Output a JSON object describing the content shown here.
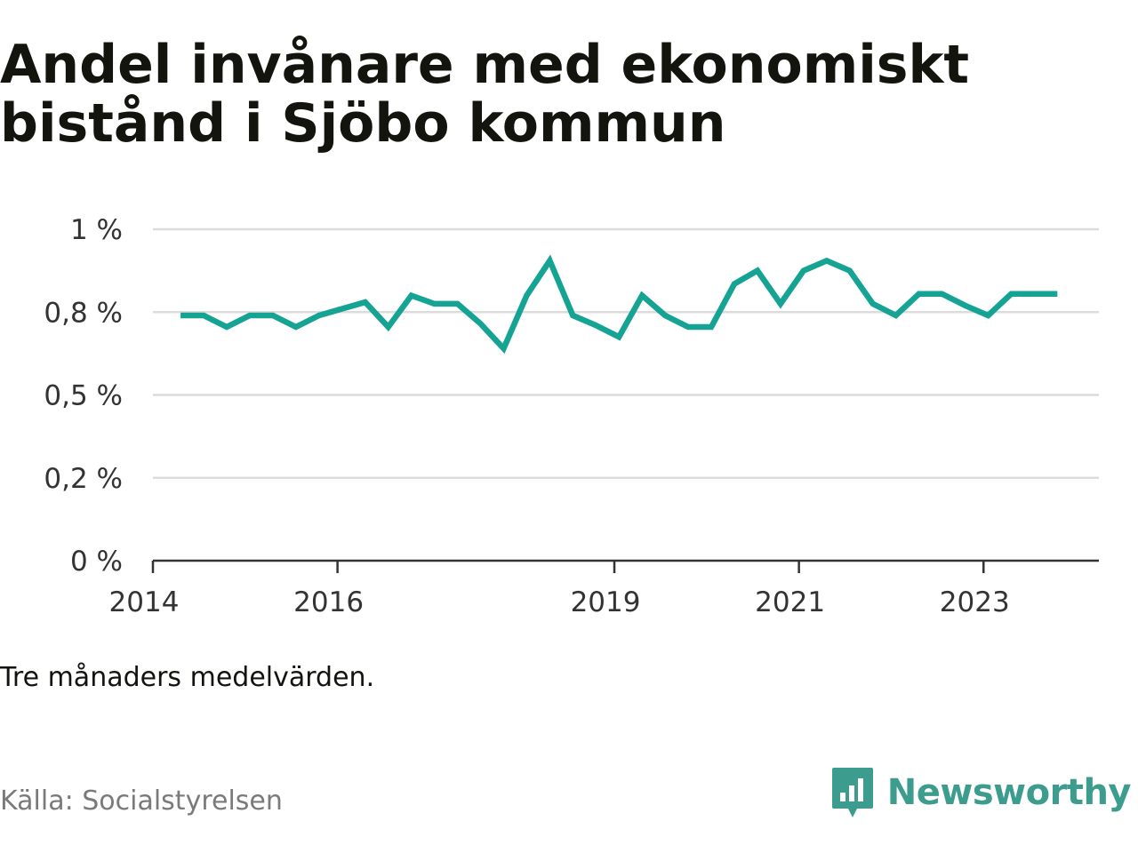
{
  "title": "Andel invånare med ekonomiskt bistånd i Sjöbo kommun",
  "note": "Tre månaders medelvärden.",
  "source": "Källa: Socialstyrelsen",
  "brand": {
    "name": "Newsworthy",
    "icon": "bar-chart-speech-bubble-icon",
    "color": "#3c9c8e"
  },
  "chart_data": {
    "type": "line",
    "line_color": "#15a394",
    "grid": true,
    "ylim": [
      0,
      1
    ],
    "y_ticks": [
      {
        "value": 0,
        "label": "0 %"
      },
      {
        "value": 0.25,
        "label": "0,2 %"
      },
      {
        "value": 0.5,
        "label": "0,5 %"
      },
      {
        "value": 0.75,
        "label": "0,8 %"
      },
      {
        "value": 1,
        "label": "1 %"
      }
    ],
    "xlim": [
      2014.0,
      2024.25
    ],
    "x_ticks": [
      {
        "value": 2014,
        "label": "2014"
      },
      {
        "value": 2016,
        "label": "2016"
      },
      {
        "value": 2019,
        "label": "2019"
      },
      {
        "value": 2021,
        "label": "2021"
      },
      {
        "value": 2023,
        "label": "2023"
      }
    ],
    "series": [
      {
        "x": [
          2014.3,
          2014.55,
          2014.8,
          2015.05,
          2015.3,
          2015.55,
          2015.8,
          2016.05,
          2016.3,
          2016.55,
          2016.8,
          2017.05,
          2017.3,
          2017.55,
          2017.8,
          2018.05,
          2018.3,
          2018.55,
          2018.8,
          2019.05,
          2019.3,
          2019.55,
          2019.8,
          2020.05,
          2020.3,
          2020.55,
          2020.8,
          2021.05,
          2021.3,
          2021.55,
          2021.8,
          2022.05,
          2022.3,
          2022.55,
          2022.8,
          2023.05,
          2023.3,
          2023.55,
          2023.8
        ],
        "values": [
          0.74,
          0.74,
          0.705,
          0.74,
          0.74,
          0.705,
          0.74,
          0.76,
          0.78,
          0.705,
          0.8,
          0.775,
          0.775,
          0.715,
          0.64,
          0.8,
          0.905,
          0.74,
          0.71,
          0.675,
          0.8,
          0.74,
          0.705,
          0.705,
          0.835,
          0.875,
          0.775,
          0.875,
          0.905,
          0.875,
          0.775,
          0.74,
          0.805,
          0.805,
          0.77,
          0.74,
          0.805,
          0.805,
          0.805
        ]
      }
    ]
  }
}
